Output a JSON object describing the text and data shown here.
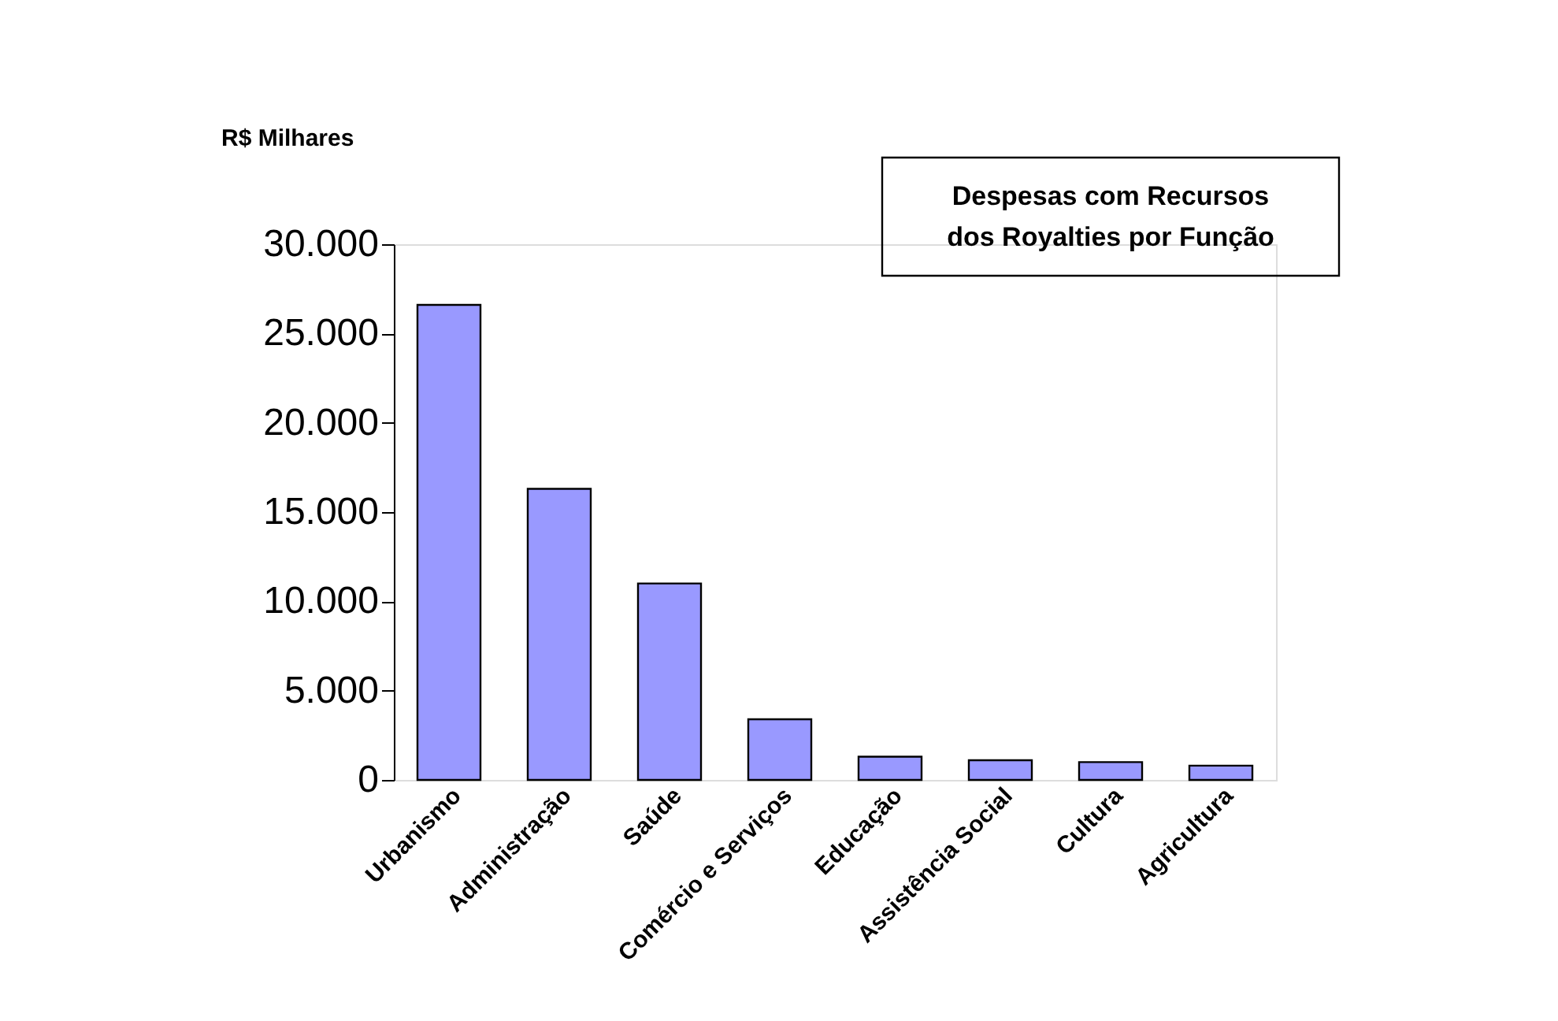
{
  "chart_data": {
    "type": "bar",
    "title": "Despesas com Recursos dos Royalties por Função",
    "ylabel": "R$ Milhares",
    "categories": [
      "Urbanismo",
      "Administração",
      "Saúde",
      "Comércio e Serviços",
      "Educação",
      "Assistência Social",
      "Cultura",
      "Agricultura"
    ],
    "values": [
      26600,
      16300,
      11000,
      3400,
      1300,
      1100,
      1000,
      800
    ],
    "color": "#9999ff",
    "ylim": [
      0,
      30000
    ],
    "yticks": [
      0,
      {
        "value": 5000,
        "label": "5.000"
      },
      {
        "value": 10000,
        "label": "10.000"
      },
      {
        "value": 15000,
        "label": "15.000"
      },
      {
        "value": 20000,
        "label": "20.000"
      },
      {
        "value": 25000,
        "label": "25.000"
      },
      {
        "value": 30000,
        "label": "30.000"
      }
    ],
    "grid": false
  }
}
